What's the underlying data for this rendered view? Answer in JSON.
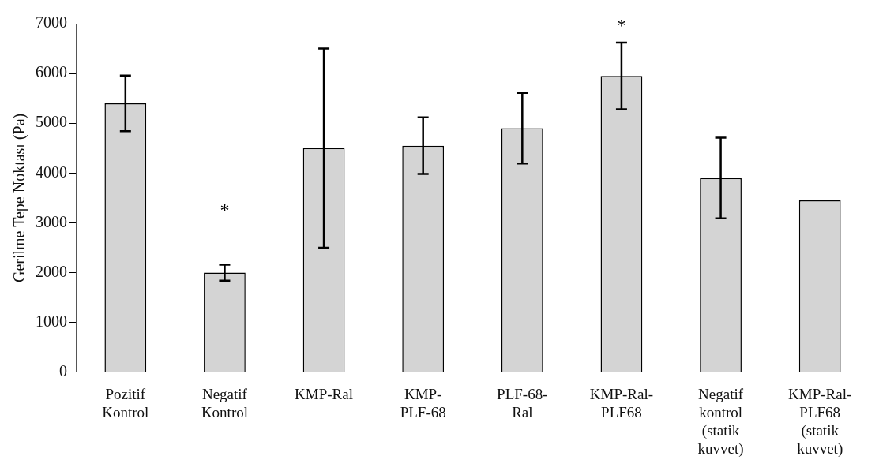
{
  "chart_data": {
    "type": "bar",
    "ylabel": "Gerilme Tepe Noktası (Pa)",
    "categories": [
      "Pozitif\nKontrol",
      "Negatif\nKontrol",
      "KMP-Ral",
      "KMP-\nPLF-68",
      "PLF-68-\nRal",
      "KMP-Ral-\nPLF68",
      "Negatif\nkontrol\n(statik\nkuvvet)",
      "KMP-Ral-\nPLF68\n(statik\nkuvvet)"
    ],
    "values": [
      5400,
      2000,
      4500,
      4550,
      4900,
      5950,
      3900,
      3450
    ],
    "errors": [
      560,
      160,
      2000,
      570,
      710,
      670,
      810,
      null
    ],
    "color": "#d4d4d4",
    "ylim": [
      0,
      7000
    ],
    "yticks": [
      0,
      1000,
      2000,
      3000,
      4000,
      5000,
      6000,
      7000
    ],
    "grid": false,
    "legend": false,
    "annotations": [
      "*",
      "*"
    ]
  }
}
